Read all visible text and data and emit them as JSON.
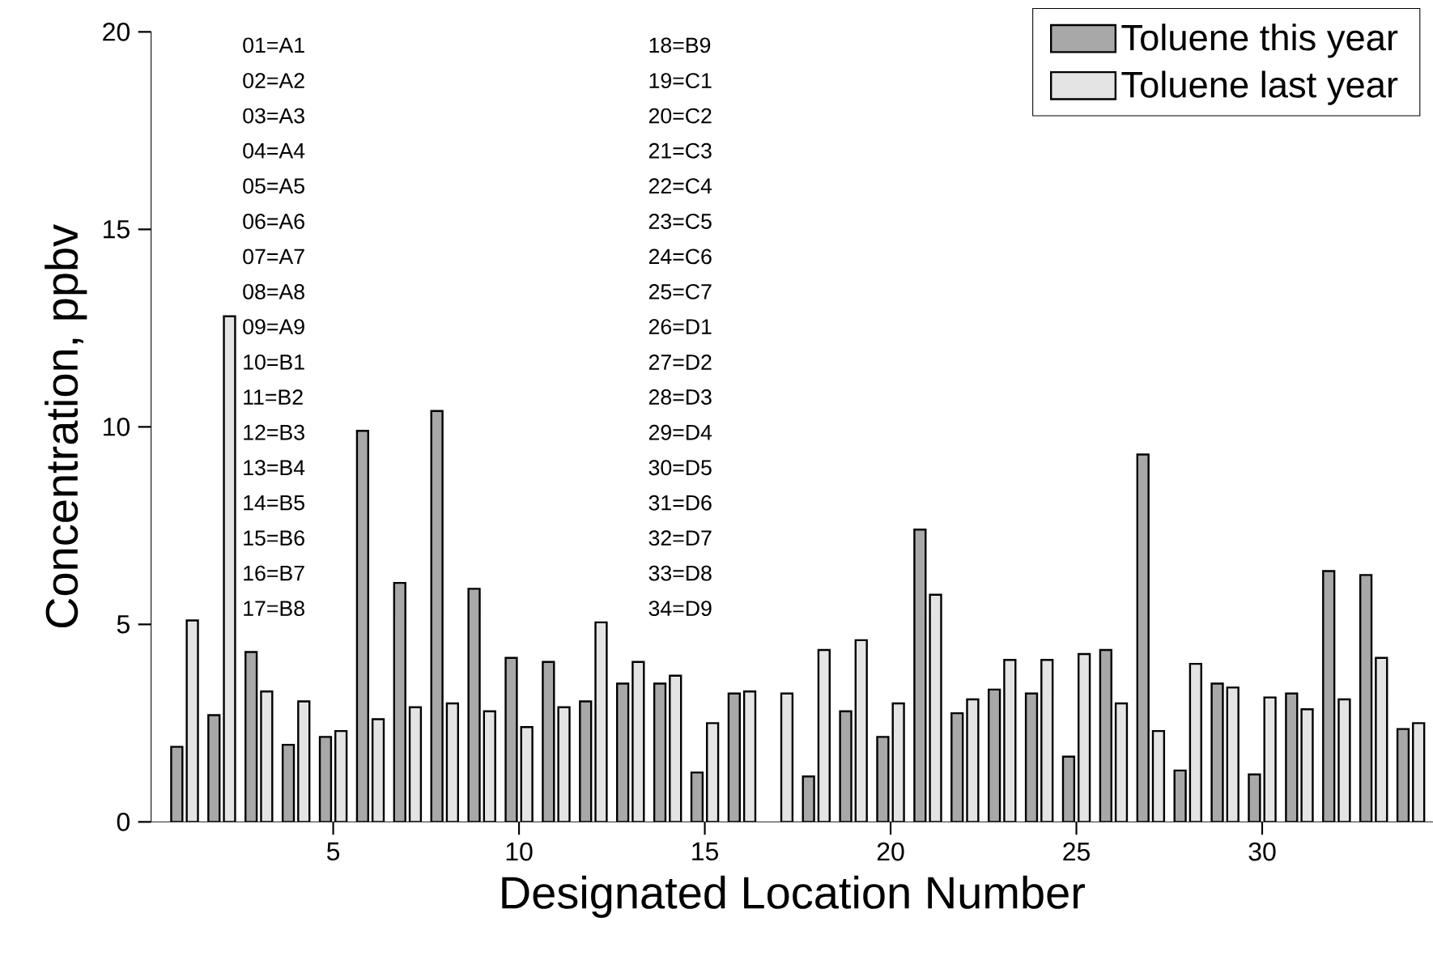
{
  "chart_data": {
    "type": "bar",
    "xlabel": "Designated Location Number",
    "ylabel": "Concentration, ppbv",
    "x": [
      1,
      2,
      3,
      4,
      5,
      6,
      7,
      8,
      9,
      10,
      11,
      12,
      13,
      14,
      15,
      16,
      17,
      18,
      19,
      20,
      21,
      22,
      23,
      24,
      25,
      26,
      27,
      28,
      29,
      30,
      31,
      32,
      33,
      34
    ],
    "series": [
      {
        "name": "Toluene this year",
        "color": "#a8a8a8",
        "values": [
          1.9,
          2.7,
          4.3,
          1.95,
          2.15,
          9.9,
          6.05,
          10.4,
          5.9,
          4.15,
          4.05,
          3.05,
          3.5,
          3.5,
          1.25,
          3.25,
          null,
          1.15,
          2.8,
          2.15,
          7.4,
          2.75,
          3.35,
          3.25,
          1.65,
          4.35,
          9.3,
          1.3,
          3.5,
          1.2,
          3.25,
          6.35,
          6.25,
          2.35
        ]
      },
      {
        "name": "Toluene last year",
        "color": "#e4e4e4",
        "values": [
          5.1,
          12.8,
          3.3,
          3.05,
          2.3,
          2.6,
          2.9,
          3.0,
          2.8,
          2.4,
          2.9,
          5.05,
          4.05,
          3.7,
          2.5,
          3.3,
          3.25,
          4.35,
          4.6,
          3.0,
          5.75,
          3.1,
          4.1,
          4.1,
          4.25,
          3.0,
          2.3,
          4.0,
          3.4,
          3.15,
          2.85,
          3.1,
          4.15,
          2.5
        ]
      }
    ],
    "xlim": [
      0.1,
      34.6
    ],
    "xticks": [
      5,
      10,
      15,
      20,
      25,
      30
    ],
    "ylim": [
      0,
      20
    ],
    "yticks": [
      0,
      5,
      10,
      15,
      20
    ],
    "grid": false,
    "legend": "top right",
    "annotations": [
      "01=A1",
      "02=A2",
      "03=A3",
      "04=A4",
      "05=A5",
      "06=A6",
      "07=A7",
      "08=A8",
      "09=A9",
      "10=B1",
      "11=B2",
      "12=B3",
      "13=B4",
      "14=B5",
      "15=B6",
      "16=B7",
      "17=B8",
      "18=B9",
      "19=C1",
      "20=C2",
      "21=C3",
      "22=C4",
      "23=C5",
      "24=C6",
      "25=C7",
      "26=D1",
      "27=D2",
      "28=D3",
      "29=D4",
      "30=D5",
      "31=D6",
      "32=D7",
      "33=D8",
      "34=D9"
    ]
  }
}
